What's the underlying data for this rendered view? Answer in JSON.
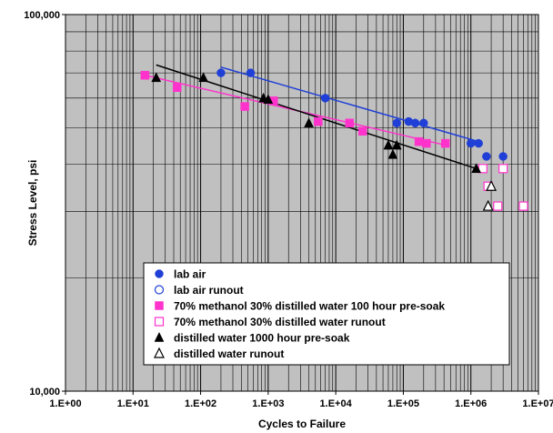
{
  "chart_data": {
    "type": "scatter",
    "title": "",
    "xlabel": "Cycles to Failure",
    "ylabel": "Stress Level, psi",
    "x_scale": "log",
    "y_scale": "log",
    "xlim": [
      1,
      10000000
    ],
    "ylim": [
      10000,
      100000
    ],
    "x_ticks": [
      1,
      10,
      100,
      1000,
      10000,
      100000,
      1000000,
      10000000
    ],
    "x_tick_labels": [
      "1.E+00",
      "1.E+01",
      "1.E+02",
      "1.E+03",
      "1.E+04",
      "1.E+05",
      "1.E+06",
      "1.E+07"
    ],
    "y_ticks": [
      10000,
      100000
    ],
    "y_tick_labels": [
      "10,000",
      "100,000"
    ],
    "grid": true,
    "legend_position": "bottom-center",
    "series": [
      {
        "name": "lab air",
        "marker": "filled-circle",
        "color": "#1f3fd6",
        "points": [
          [
            200,
            70000
          ],
          [
            550,
            70000
          ],
          [
            7000,
            60000
          ],
          [
            80000,
            51500
          ],
          [
            120000,
            52000
          ],
          [
            150000,
            51500
          ],
          [
            200000,
            51500
          ],
          [
            1000000,
            45500
          ],
          [
            1300000,
            45500
          ],
          [
            1700000,
            42000
          ],
          [
            3000000,
            42000
          ]
        ]
      },
      {
        "name": "lab air runout",
        "marker": "open-circle",
        "color": "#1f3fd6",
        "points": []
      },
      {
        "name": "70% methanol 30% distilled water 100 hour pre-soak",
        "marker": "filled-square",
        "color": "#ff33cc",
        "points": [
          [
            15,
            69000
          ],
          [
            45,
            64000
          ],
          [
            450,
            57000
          ],
          [
            1200,
            59000
          ],
          [
            5500,
            52000
          ],
          [
            16000,
            51500
          ],
          [
            25000,
            49000
          ],
          [
            170000,
            46000
          ],
          [
            220000,
            45500
          ],
          [
            420000,
            45500
          ]
        ]
      },
      {
        "name": "70% methanol 30% distilled water runout",
        "marker": "open-square",
        "color": "#ff33cc",
        "points": [
          [
            1500000,
            39000
          ],
          [
            1800000,
            35000
          ],
          [
            2500000,
            31000
          ],
          [
            3000000,
            39000
          ],
          [
            6000000,
            31000
          ]
        ]
      },
      {
        "name": "distilled water 1000 hour pre-soak",
        "marker": "filled-triangle",
        "color": "#000000",
        "points": [
          [
            22,
            68000
          ],
          [
            110,
            68000
          ],
          [
            850,
            60000
          ],
          [
            1000,
            59500
          ],
          [
            4000,
            51500
          ],
          [
            60000,
            45000
          ],
          [
            70000,
            42500
          ],
          [
            80000,
            45000
          ],
          [
            1200000,
            39000
          ]
        ]
      },
      {
        "name": "distilled water runout",
        "marker": "open-triangle",
        "color": "#000000",
        "points": [
          [
            1800000,
            31000
          ],
          [
            2000000,
            35000
          ]
        ]
      }
    ],
    "trend_lines": [
      {
        "color": "#1f3fd6",
        "from": [
          200,
          72500
        ],
        "to": [
          1300000,
          46000
        ]
      },
      {
        "color": "#ff33cc",
        "from": [
          15,
          69000
        ],
        "to": [
          420000,
          45000
        ]
      },
      {
        "color": "#000000",
        "from": [
          22,
          73500
        ],
        "to": [
          1200000,
          39000
        ]
      }
    ]
  },
  "colors": {
    "plot_background": "#c0c0c0",
    "grid": "#000000"
  }
}
